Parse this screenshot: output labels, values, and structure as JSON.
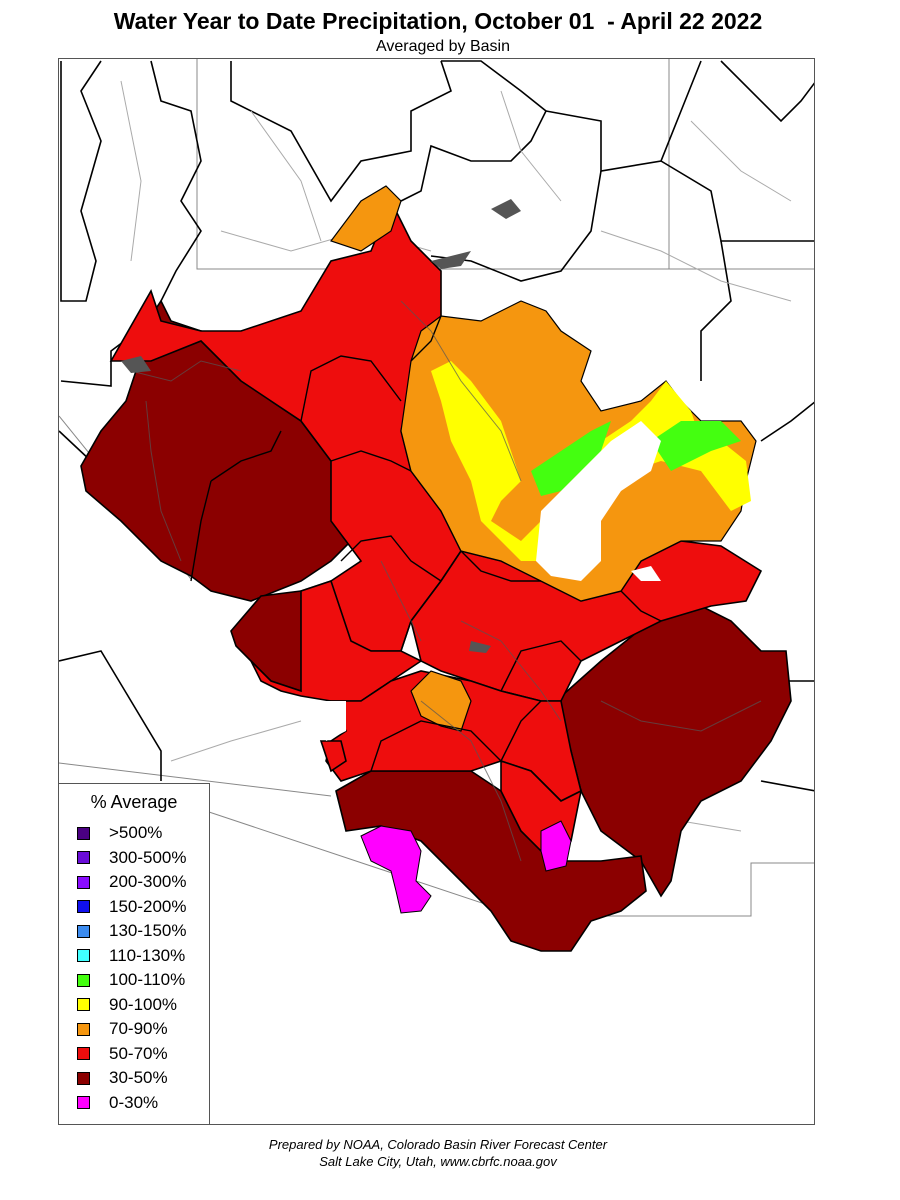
{
  "title": "Water Year to Date Precipitation, October 01  - April 22 2022",
  "subtitle": "Averaged by Basin",
  "legend": {
    "title": "% Average",
    "items": [
      {
        "label": ">500%",
        "color": "#4b0082"
      },
      {
        "label": "300-500%",
        "color": "#6a0dd8"
      },
      {
        "label": "200-300%",
        "color": "#8a0cff"
      },
      {
        "label": "150-200%",
        "color": "#1010ee"
      },
      {
        "label": "130-150%",
        "color": "#3c8cf0"
      },
      {
        "label": "110-130%",
        "color": "#40ffff"
      },
      {
        "label": "100-110%",
        "color": "#44ff10"
      },
      {
        "label": "90-100%",
        "color": "#ffff00"
      },
      {
        "label": "70-90%",
        "color": "#f5960f"
      },
      {
        "label": "50-70%",
        "color": "#ee0d0d"
      },
      {
        "label": "30-50%",
        "color": "#8b0000"
      },
      {
        "label": "0-30%",
        "color": "#ff00ff"
      }
    ]
  },
  "credits": {
    "line1": "Prepared by NOAA, Colorado Basin River Forecast Center",
    "line2": "Salt Lake City, Utah, www.cbrfc.noaa.gov"
  }
}
